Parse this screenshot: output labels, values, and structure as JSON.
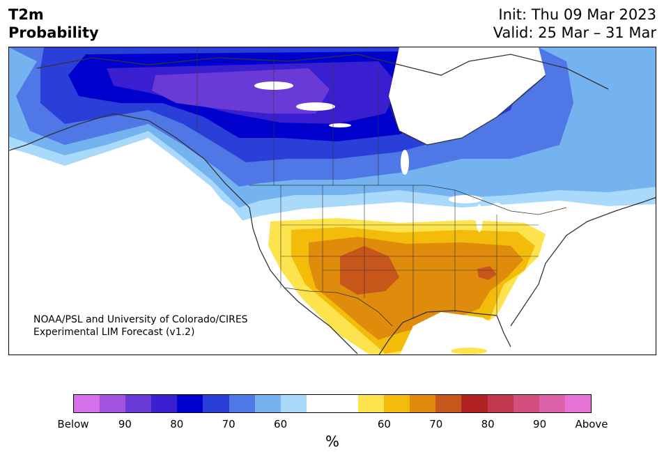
{
  "header": {
    "title_line1": "T2m",
    "title_line2": "Probability",
    "init": "Init: Thu 09 Mar 2023",
    "valid": "Valid: 25 Mar – 31 Mar"
  },
  "map": {
    "credit_line1": "NOAA/PSL and University of Colorado/CIRES",
    "credit_line2": "Experimental LIM Forecast (v1.2)",
    "colors": {
      "below_50": "#a9d9fb",
      "below_60": "#74b2f0",
      "below_70": "#4f77e6",
      "below_80": "#2a3fd8",
      "below_90": "#0000cc",
      "below_95": "#3a1fd1",
      "below_max": "#6a3ad6",
      "above_50": "#fde44e",
      "above_60": "#f4bc0a",
      "above_70": "#df8b0c",
      "above_80": "#c6561a",
      "land_outline": "#333333",
      "lakes": "#ffffff"
    }
  },
  "colorbar": {
    "colors": [
      "#d670e8",
      "#a253e0",
      "#6a3ad6",
      "#3a1fd1",
      "#0000cc",
      "#2a3fd8",
      "#4f77e6",
      "#74b2f0",
      "#a9d9fb",
      "#ffffff",
      "#ffffff",
      "#fde44e",
      "#f4bc0a",
      "#df8b0c",
      "#c6561a",
      "#b22222",
      "#c4384f",
      "#d24f80",
      "#de62aa",
      "#e672d8"
    ],
    "ticks": [
      "Below",
      "90",
      "80",
      "70",
      "60",
      "60",
      "70",
      "80",
      "90",
      "Above"
    ],
    "unit": "%"
  }
}
